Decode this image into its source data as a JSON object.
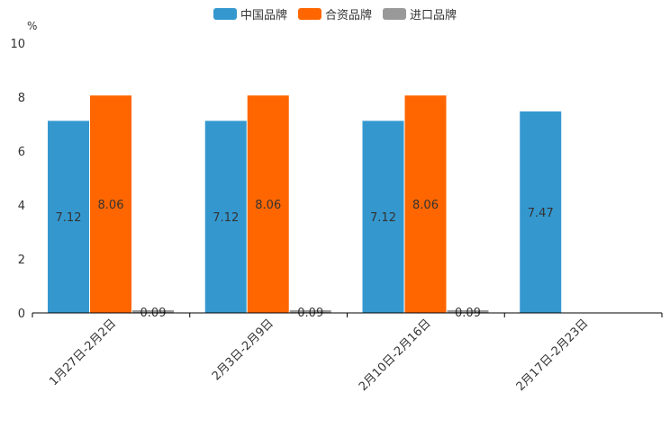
{
  "chart_data": {
    "type": "bar",
    "title": "",
    "xlabel": "",
    "ylabel": "%",
    "ylim": [
      0,
      10
    ],
    "yticks": [
      "0",
      "2",
      "4",
      "6",
      "8",
      "10"
    ],
    "categories": [
      "1月27日-2月2日",
      "2月3日-2月9日",
      "2月10日-2月16日",
      "2月17日-2月23日"
    ],
    "series": [
      {
        "name": "中国品牌",
        "color": "#3498cf",
        "values": [
          7.12,
          7.12,
          7.12,
          7.47
        ],
        "labels": [
          "7.12",
          "7.12",
          "7.12",
          "7.47"
        ]
      },
      {
        "name": "合资品牌",
        "color": "#ff6600",
        "values": [
          8.06,
          8.06,
          8.06,
          null
        ],
        "labels": [
          "8.06",
          "8.06",
          "8.06",
          ""
        ]
      },
      {
        "name": "进口品牌",
        "color": "#999999",
        "values": [
          0.09,
          0.09,
          0.09,
          null
        ],
        "labels": [
          "0.09",
          "0.09",
          "0.09",
          ""
        ]
      }
    ]
  }
}
